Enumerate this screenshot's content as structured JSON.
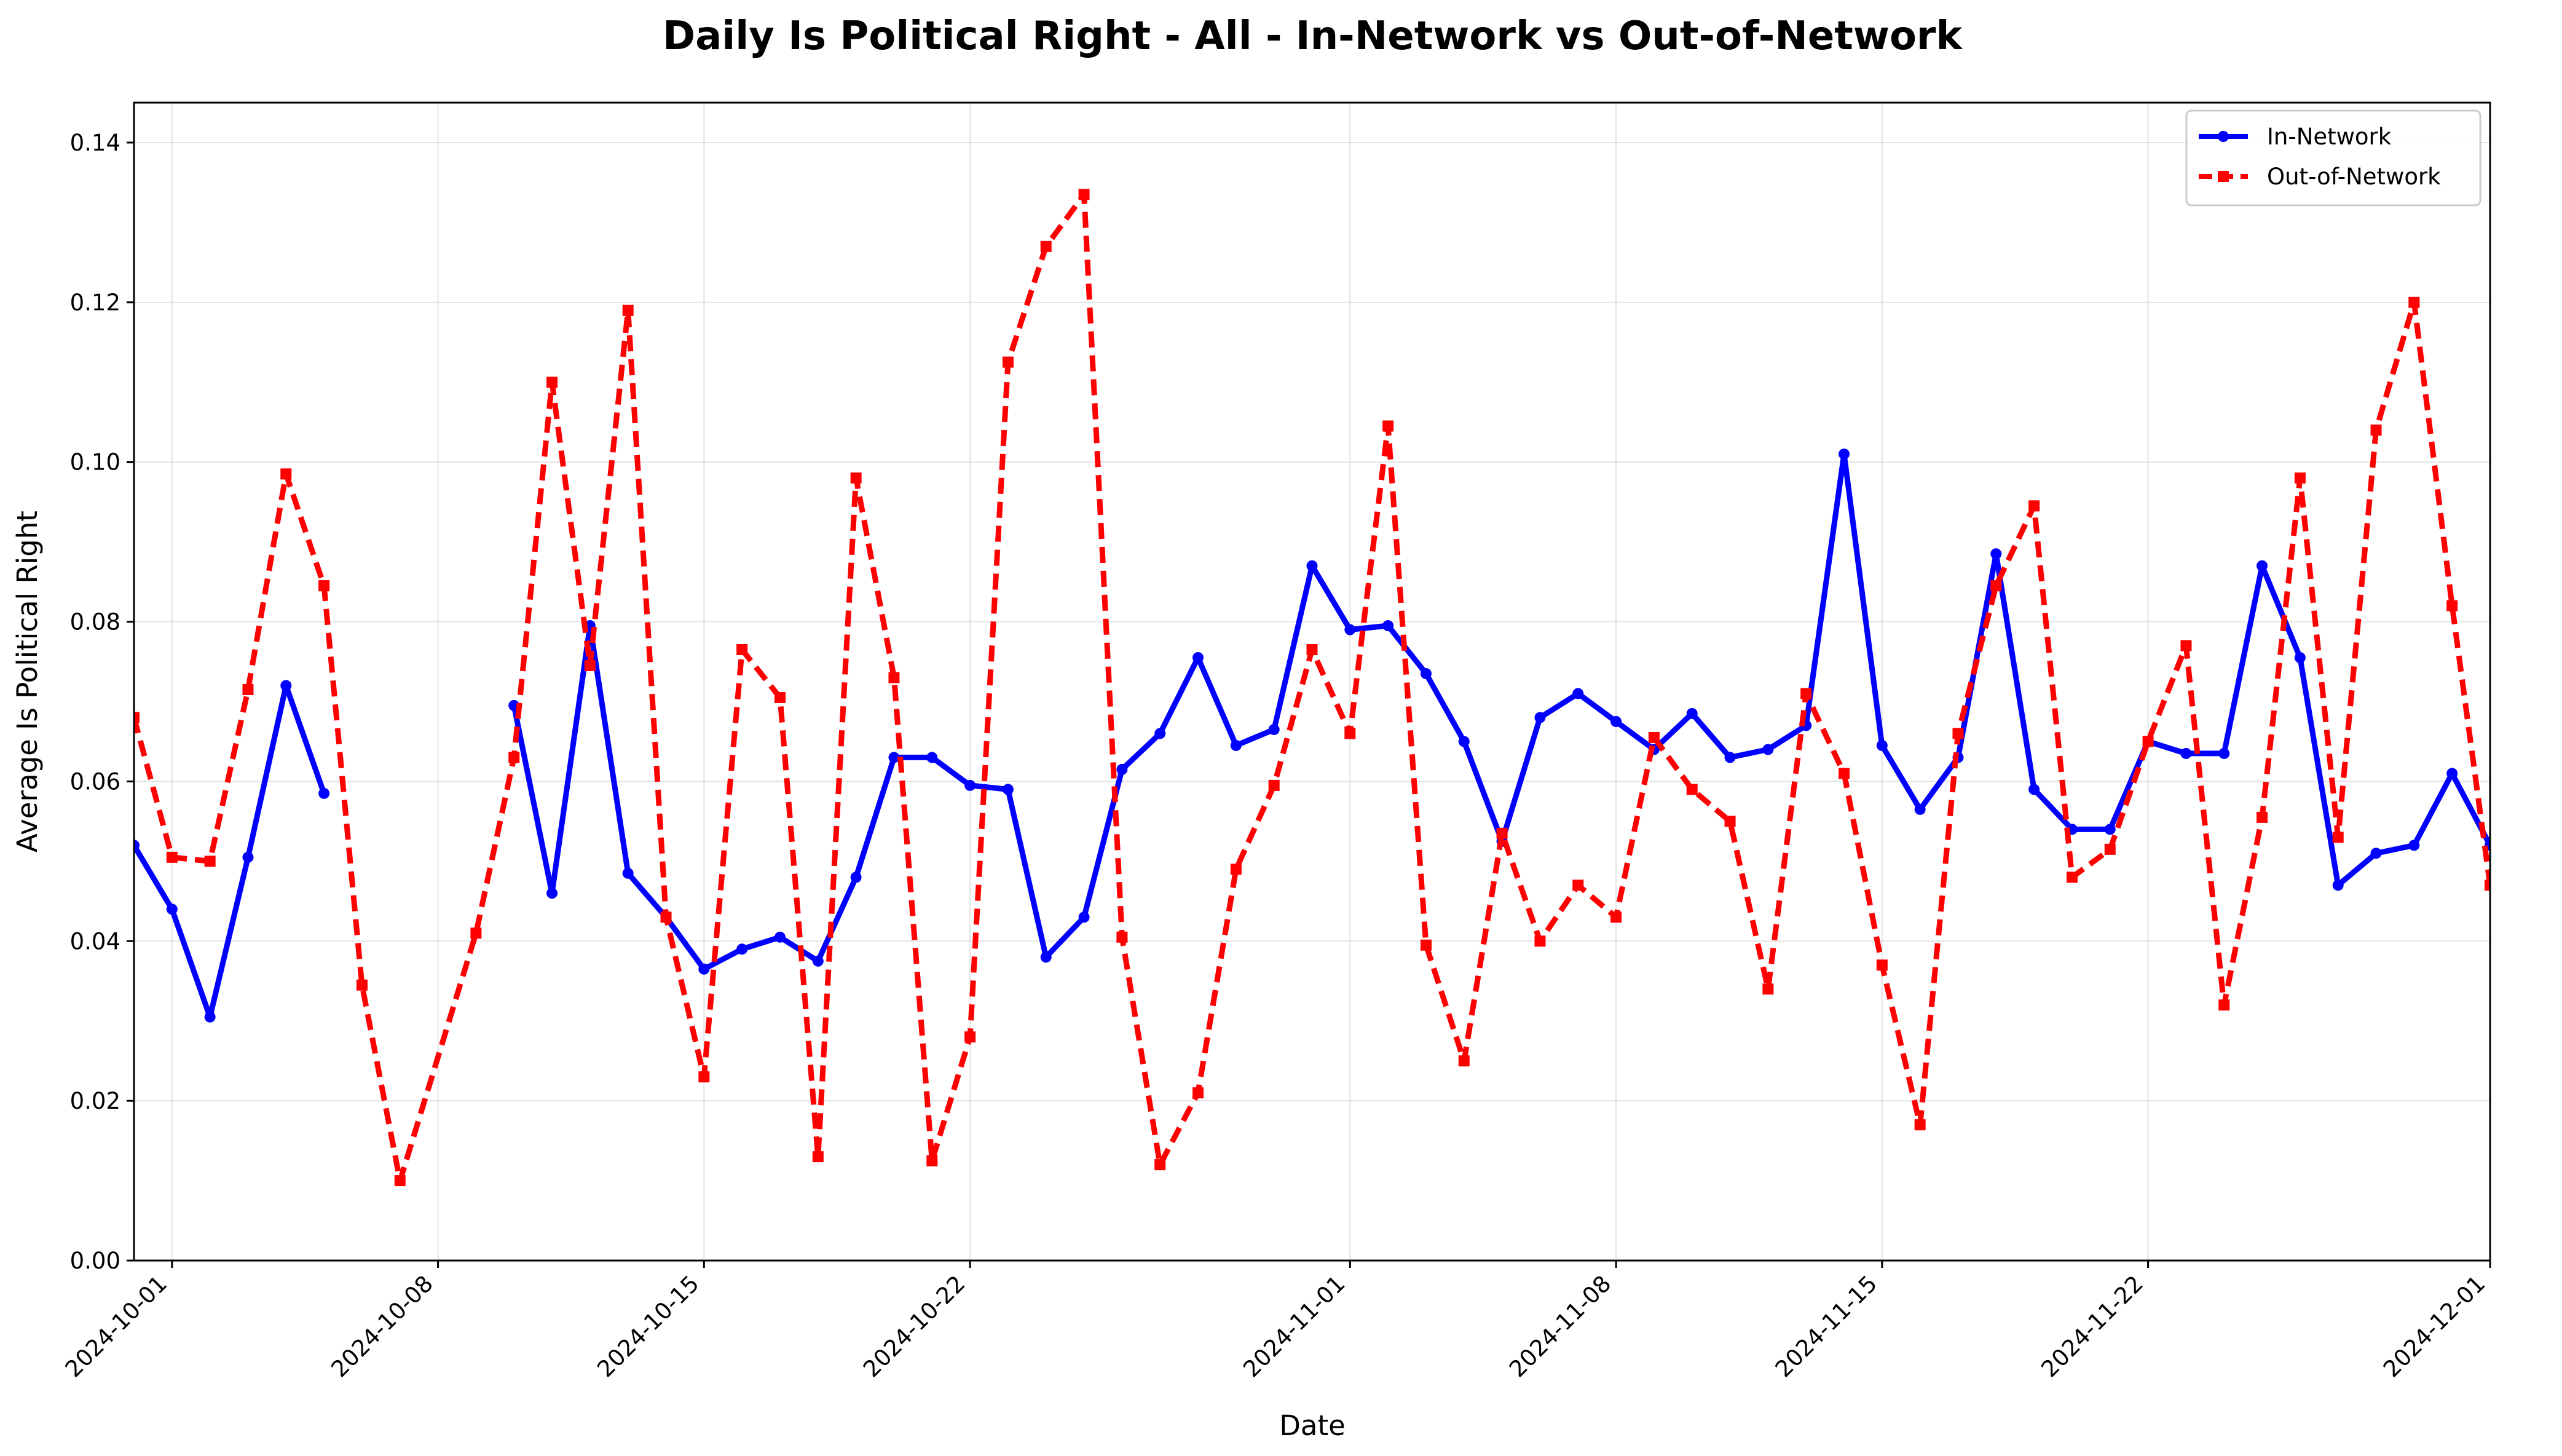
{
  "chart_data": {
    "type": "line",
    "title": "Daily Is Political Right - All - In-Network vs Out-of-Network",
    "xlabel": "Date",
    "ylabel": "Average Is Political Right",
    "x_range": [
      "2024-09-30",
      "2024-12-01"
    ],
    "ylim": [
      0.0,
      0.145
    ],
    "grid": true,
    "legend_position": "top-right",
    "x_ticks": [
      "2024-10-01",
      "2024-10-08",
      "2024-10-15",
      "2024-10-22",
      "2024-11-01",
      "2024-11-08",
      "2024-11-15",
      "2024-11-22",
      "2024-12-01"
    ],
    "y_ticks": [
      "0.00",
      "0.02",
      "0.04",
      "0.06",
      "0.08",
      "0.10",
      "0.12",
      "0.14"
    ],
    "series": [
      {
        "name": "In-Network",
        "color": "#0000ff",
        "line_style": "solid",
        "marker": "circle",
        "segments": [
          [
            [
              "2024-09-30",
              0.052
            ],
            [
              "2024-10-01",
              0.044
            ],
            [
              "2024-10-02",
              0.0305
            ],
            [
              "2024-10-03",
              0.0505
            ],
            [
              "2024-10-04",
              0.072
            ],
            [
              "2024-10-05",
              0.0585
            ]
          ],
          [
            [
              "2024-10-10",
              0.0695
            ],
            [
              "2024-10-11",
              0.046
            ],
            [
              "2024-10-12",
              0.0795
            ],
            [
              "2024-10-13",
              0.0485
            ],
            [
              "2024-10-14",
              0.043
            ],
            [
              "2024-10-15",
              0.0365
            ],
            [
              "2024-10-16",
              0.039
            ],
            [
              "2024-10-17",
              0.0405
            ],
            [
              "2024-10-18",
              0.0375
            ],
            [
              "2024-10-19",
              0.048
            ],
            [
              "2024-10-20",
              0.063
            ],
            [
              "2024-10-21",
              0.063
            ],
            [
              "2024-10-22",
              0.0595
            ],
            [
              "2024-10-23",
              0.059
            ],
            [
              "2024-10-24",
              0.038
            ],
            [
              "2024-10-25",
              0.043
            ],
            [
              "2024-10-26",
              0.0615
            ],
            [
              "2024-10-27",
              0.066
            ],
            [
              "2024-10-28",
              0.0755
            ],
            [
              "2024-10-29",
              0.0645
            ],
            [
              "2024-10-30",
              0.0665
            ],
            [
              "2024-10-31",
              0.087
            ],
            [
              "2024-11-01",
              0.079
            ],
            [
              "2024-11-02",
              0.0795
            ],
            [
              "2024-11-03",
              0.0735
            ],
            [
              "2024-11-04",
              0.065
            ],
            [
              "2024-11-05",
              0.0525
            ],
            [
              "2024-11-06",
              0.068
            ],
            [
              "2024-11-07",
              0.071
            ],
            [
              "2024-11-08",
              0.0675
            ],
            [
              "2024-11-09",
              0.064
            ],
            [
              "2024-11-10",
              0.0685
            ],
            [
              "2024-11-11",
              0.063
            ],
            [
              "2024-11-12",
              0.064
            ],
            [
              "2024-11-13",
              0.067
            ],
            [
              "2024-11-14",
              0.101
            ],
            [
              "2024-11-15",
              0.0645
            ],
            [
              "2024-11-16",
              0.0565
            ],
            [
              "2024-11-17",
              0.063
            ],
            [
              "2024-11-18",
              0.0885
            ],
            [
              "2024-11-19",
              0.059
            ],
            [
              "2024-11-20",
              0.054
            ],
            [
              "2024-11-21",
              0.054
            ],
            [
              "2024-11-22",
              0.065
            ],
            [
              "2024-11-23",
              0.0635
            ],
            [
              "2024-11-24",
              0.0635
            ],
            [
              "2024-11-25",
              0.087
            ],
            [
              "2024-11-26",
              0.0755
            ],
            [
              "2024-11-27",
              0.047
            ],
            [
              "2024-11-28",
              0.051
            ],
            [
              "2024-11-29",
              0.052
            ],
            [
              "2024-11-30",
              0.061
            ],
            [
              "2024-12-01",
              0.052
            ]
          ]
        ]
      },
      {
        "name": "Out-of-Network",
        "color": "#ff0000",
        "line_style": "dashed",
        "marker": "square",
        "segments": [
          [
            [
              "2024-09-30",
              0.068
            ],
            [
              "2024-10-01",
              0.0505
            ],
            [
              "2024-10-02",
              0.05
            ],
            [
              "2024-10-03",
              0.0715
            ],
            [
              "2024-10-04",
              0.0985
            ],
            [
              "2024-10-05",
              0.0845
            ],
            [
              "2024-10-06",
              0.0345
            ],
            [
              "2024-10-07",
              0.01
            ],
            [
              "2024-10-09",
              0.041
            ],
            [
              "2024-10-10",
              0.063
            ],
            [
              "2024-10-11",
              0.11
            ],
            [
              "2024-10-12",
              0.0745
            ],
            [
              "2024-10-13",
              0.119
            ],
            [
              "2024-10-14",
              0.043
            ],
            [
              "2024-10-15",
              0.023
            ],
            [
              "2024-10-16",
              0.0765
            ],
            [
              "2024-10-17",
              0.0705
            ],
            [
              "2024-10-18",
              0.013
            ],
            [
              "2024-10-19",
              0.098
            ],
            [
              "2024-10-20",
              0.073
            ],
            [
              "2024-10-21",
              0.0125
            ],
            [
              "2024-10-22",
              0.028
            ],
            [
              "2024-10-23",
              0.1125
            ],
            [
              "2024-10-24",
              0.127
            ],
            [
              "2024-10-25",
              0.1335
            ],
            [
              "2024-10-26",
              0.0405
            ],
            [
              "2024-10-27",
              0.012
            ],
            [
              "2024-10-28",
              0.021
            ],
            [
              "2024-10-29",
              0.049
            ],
            [
              "2024-10-30",
              0.0595
            ],
            [
              "2024-10-31",
              0.0765
            ],
            [
              "2024-11-01",
              0.066
            ],
            [
              "2024-11-02",
              0.1045
            ],
            [
              "2024-11-03",
              0.0395
            ],
            [
              "2024-11-04",
              0.025
            ],
            [
              "2024-11-05",
              0.0535
            ],
            [
              "2024-11-06",
              0.04
            ],
            [
              "2024-11-07",
              0.047
            ],
            [
              "2024-11-08",
              0.043
            ],
            [
              "2024-11-09",
              0.0655
            ],
            [
              "2024-11-10",
              0.059
            ],
            [
              "2024-11-11",
              0.055
            ],
            [
              "2024-11-12",
              0.034
            ],
            [
              "2024-11-13",
              0.071
            ],
            [
              "2024-11-14",
              0.061
            ],
            [
              "2024-11-15",
              0.037
            ],
            [
              "2024-11-16",
              0.017
            ],
            [
              "2024-11-17",
              0.066
            ],
            [
              "2024-11-18",
              0.0845
            ],
            [
              "2024-11-19",
              0.0945
            ],
            [
              "2024-11-20",
              0.048
            ],
            [
              "2024-11-21",
              0.0515
            ],
            [
              "2024-11-22",
              0.065
            ],
            [
              "2024-11-23",
              0.077
            ],
            [
              "2024-11-24",
              0.032
            ],
            [
              "2024-11-25",
              0.0555
            ],
            [
              "2024-11-26",
              0.098
            ],
            [
              "2024-11-27",
              0.053
            ],
            [
              "2024-11-28",
              0.104
            ],
            [
              "2024-11-29",
              0.12
            ],
            [
              "2024-11-30",
              0.082
            ],
            [
              "2024-12-01",
              0.047
            ]
          ]
        ]
      }
    ]
  }
}
